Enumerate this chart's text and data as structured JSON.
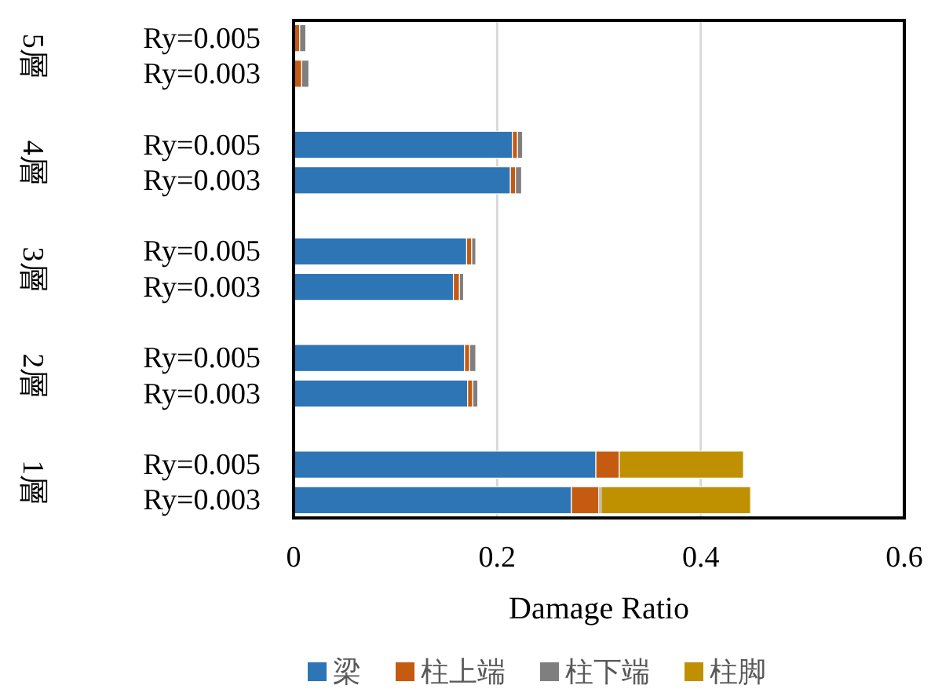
{
  "chart_data": {
    "type": "bar",
    "orientation": "horizontal",
    "stacked": true,
    "xlabel": "Damage Ratio",
    "categories": [
      "Ry=0.005",
      "Ry=0.003",
      "Ry=0.005",
      "Ry=0.003",
      "Ry=0.005",
      "Ry=0.003",
      "Ry=0.005",
      "Ry=0.003",
      "Ry=0.005",
      "Ry=0.003"
    ],
    "annotations": [
      "5層",
      "4層",
      "3層",
      "2層",
      "1層"
    ],
    "series": [
      {
        "name": "梁",
        "color": "#2e75b6",
        "values": [
          0,
          0,
          0.215,
          0.213,
          0.17,
          0.157,
          0.168,
          0.171,
          0.297,
          0.273
        ]
      },
      {
        "name": "柱上端",
        "color": "#c55a11",
        "values": [
          0.006,
          0.008,
          0.005,
          0.005,
          0.005,
          0.006,
          0.005,
          0.005,
          0.023,
          0.027
        ]
      },
      {
        "name": "柱下端",
        "color": "#7f7f7f",
        "values": [
          0.006,
          0.007,
          0.005,
          0.006,
          0.004,
          0.004,
          0.006,
          0.005,
          null,
          0.002
        ]
      },
      {
        "name": "柱脚",
        "color": "#bf9000",
        "values": [
          0,
          0,
          0,
          0,
          0,
          0,
          0,
          0,
          0.122,
          0.147
        ]
      }
    ],
    "xlim": [
      0,
      0.6
    ],
    "xticks": [
      0,
      0.2,
      0.4,
      0.6
    ],
    "grid": "x",
    "legend": "bottom"
  }
}
